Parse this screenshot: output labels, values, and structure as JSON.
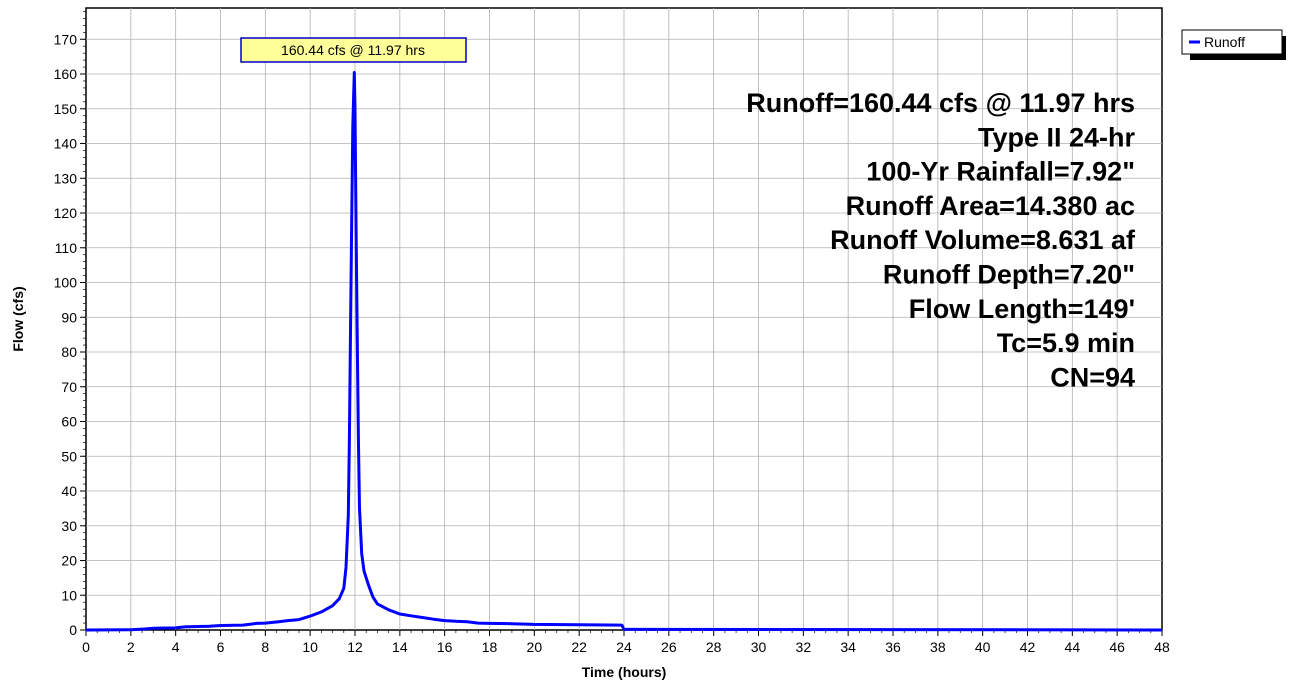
{
  "chart_data": {
    "type": "line",
    "xlabel": "Time  (hours)",
    "ylabel": "Flow  (cfs)",
    "xlim": [
      0,
      48
    ],
    "ylim": [
      0,
      179
    ],
    "x_ticks": [
      0,
      2,
      4,
      6,
      8,
      10,
      12,
      14,
      16,
      18,
      20,
      22,
      24,
      26,
      28,
      30,
      32,
      34,
      36,
      38,
      40,
      42,
      44,
      46,
      48
    ],
    "y_ticks": [
      0,
      10,
      20,
      30,
      40,
      50,
      60,
      70,
      80,
      90,
      100,
      110,
      120,
      130,
      140,
      150,
      160,
      170
    ],
    "grid": true,
    "legend": {
      "position": "top-right",
      "entries": [
        "Runoff"
      ]
    },
    "series": [
      {
        "name": "Runoff",
        "color": "#0000ff",
        "points": [
          [
            0,
            0
          ],
          [
            2.0,
            0.1
          ],
          [
            2.6,
            0.3
          ],
          [
            3.0,
            0.5
          ],
          [
            4.0,
            0.6
          ],
          [
            4.4,
            0.9
          ],
          [
            5.0,
            1.0
          ],
          [
            5.5,
            1.1
          ],
          [
            6.0,
            1.3
          ],
          [
            7.0,
            1.4
          ],
          [
            7.6,
            1.9
          ],
          [
            8.0,
            2.0
          ],
          [
            8.6,
            2.4
          ],
          [
            9.0,
            2.7
          ],
          [
            9.5,
            3.0
          ],
          [
            10.0,
            4.0
          ],
          [
            10.5,
            5.2
          ],
          [
            11.0,
            7.0
          ],
          [
            11.3,
            9.0
          ],
          [
            11.5,
            12.0
          ],
          [
            11.6,
            18.0
          ],
          [
            11.7,
            33.0
          ],
          [
            11.75,
            55.0
          ],
          [
            11.8,
            86.0
          ],
          [
            11.85,
            115.0
          ],
          [
            11.9,
            145.0
          ],
          [
            11.97,
            160.44
          ],
          [
            12.0,
            150.0
          ],
          [
            12.05,
            115.0
          ],
          [
            12.1,
            85.0
          ],
          [
            12.15,
            55.0
          ],
          [
            12.2,
            35.0
          ],
          [
            12.3,
            22.0
          ],
          [
            12.4,
            17.0
          ],
          [
            12.6,
            13.0
          ],
          [
            12.8,
            9.5
          ],
          [
            13.0,
            7.5
          ],
          [
            13.5,
            5.8
          ],
          [
            14.0,
            4.6
          ],
          [
            14.5,
            4.1
          ],
          [
            15.0,
            3.6
          ],
          [
            15.5,
            3.1
          ],
          [
            16.0,
            2.7
          ],
          [
            16.5,
            2.5
          ],
          [
            17.0,
            2.4
          ],
          [
            17.5,
            2.0
          ],
          [
            18.0,
            1.9
          ],
          [
            19.0,
            1.8
          ],
          [
            20.0,
            1.6
          ],
          [
            22.0,
            1.5
          ],
          [
            23.9,
            1.4
          ],
          [
            24.0,
            0.2
          ],
          [
            48.0,
            0.0
          ]
        ]
      }
    ],
    "annotation": {
      "text": "160.44 cfs @ 11.97 hrs",
      "x": 11.97,
      "y": 160.44
    }
  },
  "info_lines": [
    "Runoff=160.44 cfs @ 11.97 hrs",
    "Type II 24-hr",
    "100-Yr Rainfall=7.92\"",
    "Runoff Area=14.380 ac",
    "Runoff Volume=8.631 af",
    "Runoff Depth=7.20\"",
    "Flow Length=149'",
    "Tc=5.9 min",
    "CN=94"
  ],
  "colors": {
    "series": "#0000ff",
    "annotation_bg": "#ffff99",
    "grid": "#b0b0b0"
  }
}
